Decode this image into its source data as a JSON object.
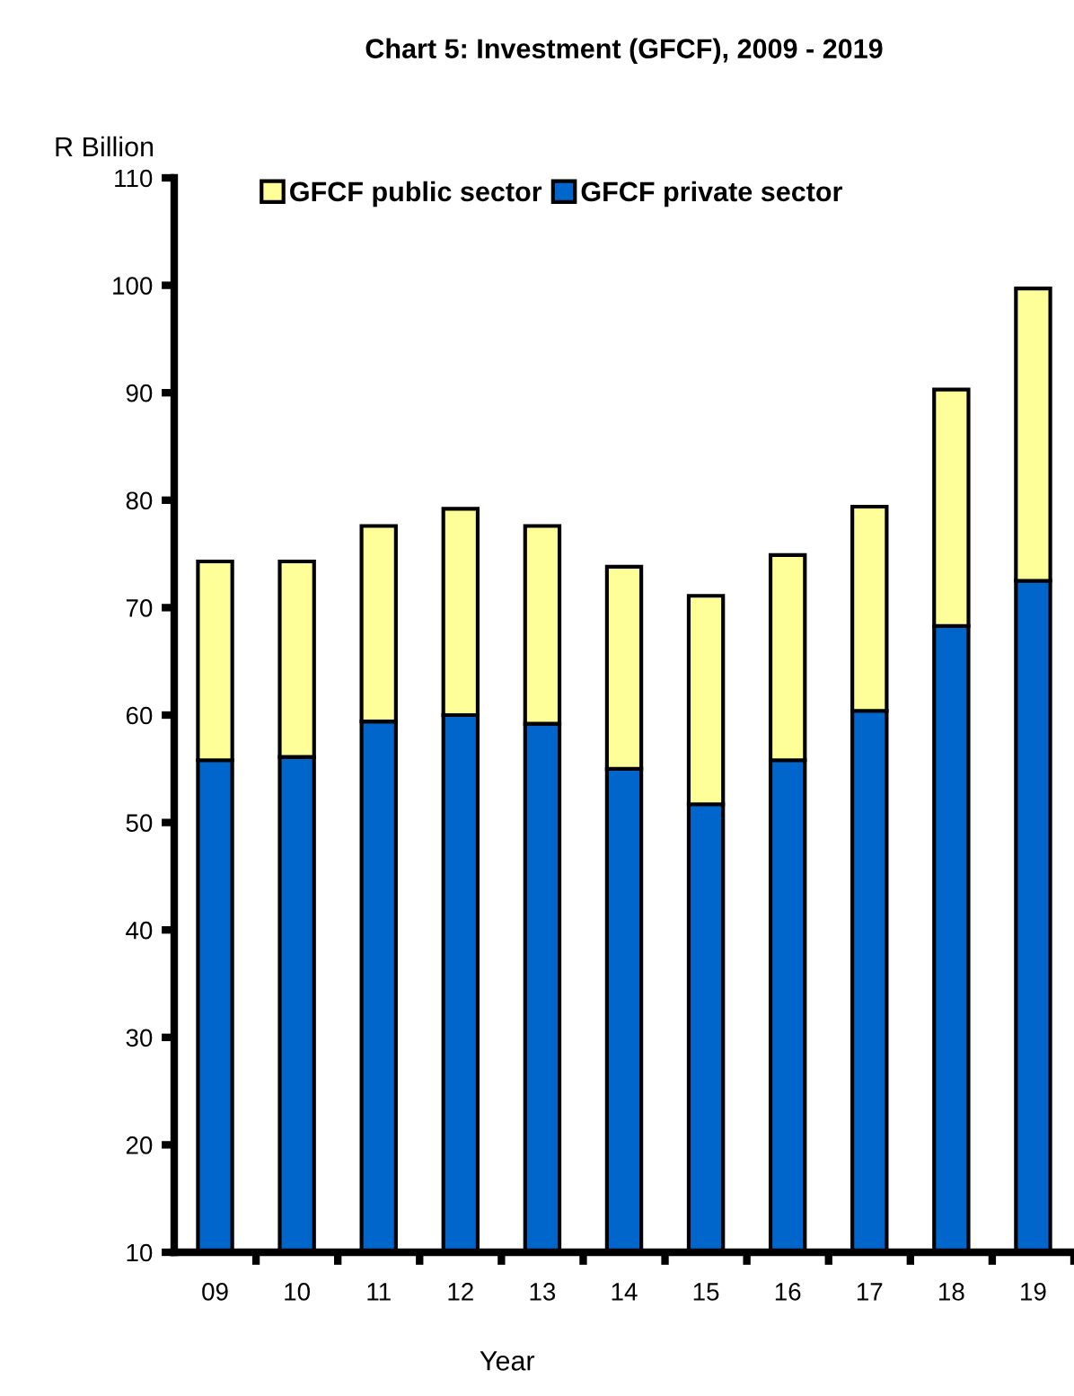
{
  "chart_data": {
    "type": "bar",
    "title": "Chart 5: Investment (GFCF), 2009 - 2019",
    "ylabel": "R Billion",
    "xlabel": "Year",
    "categories": [
      "09",
      "10",
      "11",
      "12",
      "13",
      "14",
      "15",
      "16",
      "17",
      "18",
      "19"
    ],
    "stacked": true,
    "series": [
      {
        "name": "GFCF private sector",
        "color": "#0066cc",
        "values": [
          55.8,
          56.1,
          59.4,
          60.0,
          59.2,
          55.0,
          51.7,
          55.8,
          60.4,
          68.3,
          72.5
        ]
      },
      {
        "name": "GFCF public sector",
        "color": "#ffff99",
        "values": [
          18.5,
          18.2,
          18.2,
          19.2,
          18.4,
          18.8,
          19.4,
          19.1,
          19.0,
          22.0,
          27.2
        ]
      }
    ],
    "ylim": [
      10,
      110
    ],
    "yticks": [
      10,
      20,
      30,
      40,
      50,
      60,
      70,
      80,
      90,
      100,
      110
    ],
    "grid": false,
    "legend": "top"
  }
}
